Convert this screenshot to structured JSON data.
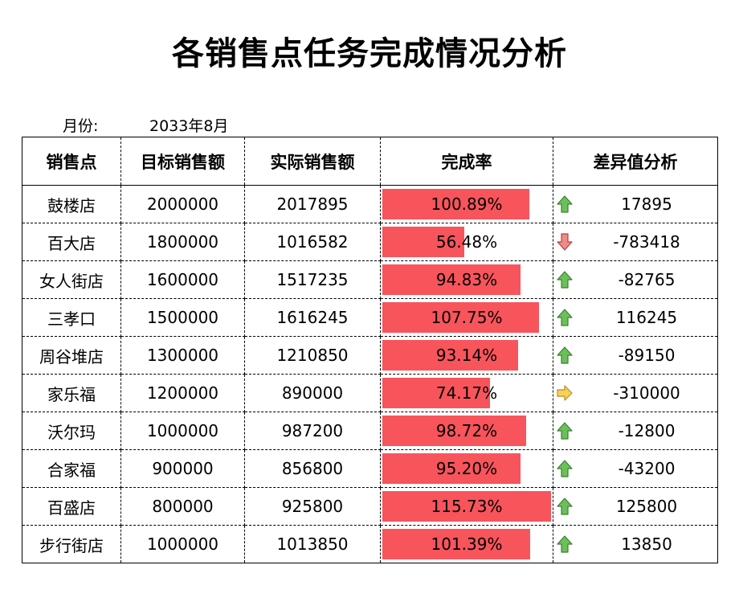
{
  "title": "各销售点任务完成情况分析",
  "month": {
    "label": "月份:",
    "value": "2033年8月"
  },
  "headers": [
    "销售点",
    "目标销售额",
    "实际销售额",
    "完成率",
    "差异值分析"
  ],
  "bar_color": "#f8545c",
  "rows": [
    {
      "store": "鼓楼店",
      "target": "2000000",
      "actual": "2017895",
      "rate": "100.89%",
      "rate_value": 100.89,
      "diff": "17895",
      "trend": "up"
    },
    {
      "store": "百大店",
      "target": "1800000",
      "actual": "1016582",
      "rate": "56.48%",
      "rate_value": 56.48,
      "diff": "-783418",
      "trend": "down"
    },
    {
      "store": "女人街店",
      "target": "1600000",
      "actual": "1517235",
      "rate": "94.83%",
      "rate_value": 94.83,
      "diff": "-82765",
      "trend": "up"
    },
    {
      "store": "三孝口",
      "target": "1500000",
      "actual": "1616245",
      "rate": "107.75%",
      "rate_value": 107.75,
      "diff": "116245",
      "trend": "up"
    },
    {
      "store": "周谷堆店",
      "target": "1300000",
      "actual": "1210850",
      "rate": "93.14%",
      "rate_value": 93.14,
      "diff": "-89150",
      "trend": "up"
    },
    {
      "store": "家乐福",
      "target": "1200000",
      "actual": "890000",
      "rate": "74.17%",
      "rate_value": 74.17,
      "diff": "-310000",
      "trend": "right"
    },
    {
      "store": "沃尔玛",
      "target": "1000000",
      "actual": "987200",
      "rate": "98.72%",
      "rate_value": 98.72,
      "diff": "-12800",
      "trend": "up"
    },
    {
      "store": "合家福",
      "target": "900000",
      "actual": "856800",
      "rate": "95.20%",
      "rate_value": 95.2,
      "diff": "-43200",
      "trend": "up"
    },
    {
      "store": "百盛店",
      "target": "800000",
      "actual": "925800",
      "rate": "115.73%",
      "rate_value": 115.73,
      "diff": "125800",
      "trend": "up"
    },
    {
      "store": "步行街店",
      "target": "1000000",
      "actual": "1013850",
      "rate": "101.39%",
      "rate_value": 101.39,
      "diff": "13850",
      "trend": "up"
    }
  ]
}
